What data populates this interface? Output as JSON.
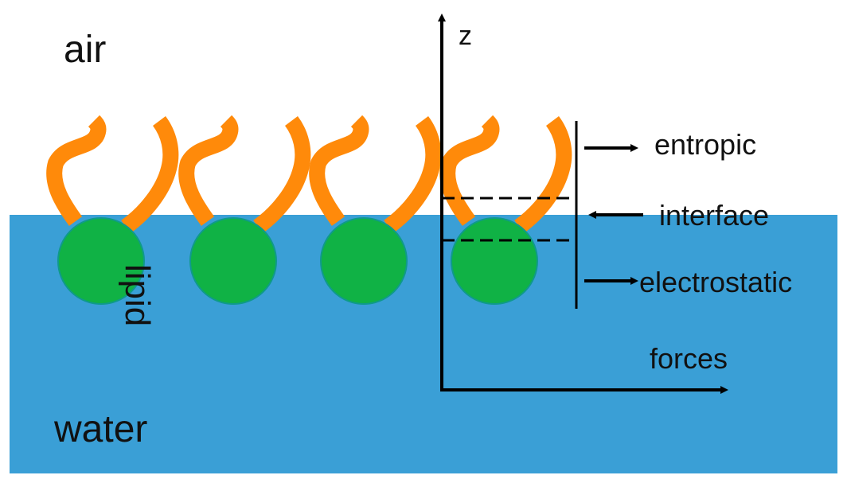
{
  "labels": {
    "air": "air",
    "water": "water",
    "lipid": "lipid",
    "z_axis": "z",
    "forces_axis": "forces",
    "entropic": "entropic",
    "interface": "interface",
    "electrostatic": "electrostatic"
  },
  "lipid_count": 4,
  "colors": {
    "water": "#3a9fd6",
    "air": "#ffffff",
    "lipid_head": "#10b245",
    "lipid_tail": "#ff8a0a",
    "axis": "#000000"
  }
}
